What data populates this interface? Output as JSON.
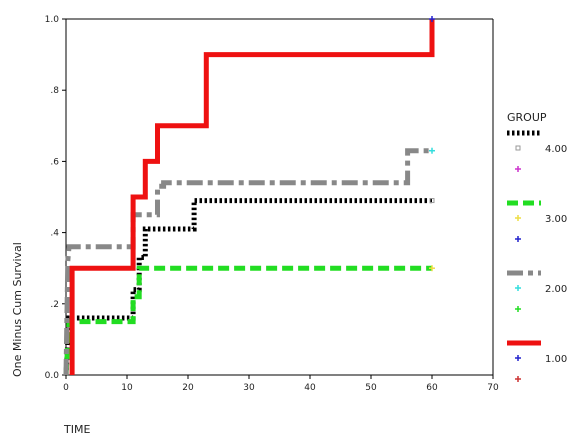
{
  "chart_data": {
    "type": "line",
    "title": "",
    "xlabel": "TIME",
    "ylabel": "One Minus Cum Survival",
    "xlim": [
      0,
      70
    ],
    "ylim": [
      0,
      1
    ],
    "x_ticks": [
      0,
      10,
      20,
      30,
      40,
      50,
      60,
      70
    ],
    "y_ticks": [
      0.0,
      0.2,
      0.4,
      0.6,
      0.8,
      1.0
    ],
    "x_tick_labels": [
      "0",
      "10",
      "20",
      "30",
      "40",
      "50",
      "60",
      "70"
    ],
    "y_tick_labels": [
      "0.0",
      ".2",
      ".4",
      ".6",
      ".8",
      "1.0"
    ],
    "grid": false,
    "legend": {
      "title": "GROUP",
      "placement": "right",
      "entries": [
        "4.00",
        "3.00",
        "2.00",
        "1.00"
      ]
    },
    "series": [
      {
        "name": "4.00",
        "style": "dotted",
        "color": "#000000",
        "censor_color": "#999999",
        "censor_marker": "square",
        "points": [
          [
            0,
            0
          ],
          [
            0.5,
            0.16
          ],
          [
            11,
            0.16
          ],
          [
            11,
            0.24
          ],
          [
            12,
            0.24
          ],
          [
            12,
            0.33
          ],
          [
            13,
            0.33
          ],
          [
            13,
            0.41
          ],
          [
            21,
            0.41
          ],
          [
            21,
            0.49
          ],
          [
            60,
            0.49
          ]
        ]
      },
      {
        "name": "3.00",
        "style": "dashed",
        "color": "#22dd22",
        "censor_color": "#eedd44",
        "censor_marker": "cross",
        "points": [
          [
            0,
            0
          ],
          [
            0.5,
            0.15
          ],
          [
            11,
            0.15
          ],
          [
            11,
            0.22
          ],
          [
            12,
            0.22
          ],
          [
            12,
            0.3
          ],
          [
            60,
            0.3
          ]
        ]
      },
      {
        "name": "2.00",
        "style": "dashdot",
        "color": "#888888",
        "censor_color": "#33dddd",
        "censor_marker": "cross",
        "points": [
          [
            0,
            0
          ],
          [
            0.3,
            0.32
          ],
          [
            0.5,
            0.36
          ],
          [
            11,
            0.36
          ],
          [
            11,
            0.45
          ],
          [
            15,
            0.45
          ],
          [
            15,
            0.53
          ],
          [
            16,
            0.53
          ],
          [
            16,
            0.54
          ],
          [
            56,
            0.54
          ],
          [
            56,
            0.63
          ],
          [
            60,
            0.63
          ]
        ]
      },
      {
        "name": "1.00",
        "style": "solid",
        "color": "#ee1111",
        "censor_color": "#2222cc",
        "censor_marker": "cross",
        "points": [
          [
            1,
            0
          ],
          [
            1,
            0.3
          ],
          [
            11,
            0.3
          ],
          [
            11,
            0.5
          ],
          [
            13,
            0.5
          ],
          [
            13,
            0.6
          ],
          [
            15,
            0.6
          ],
          [
            15,
            0.7
          ],
          [
            23,
            0.7
          ],
          [
            23,
            0.9
          ],
          [
            60,
            0.9
          ],
          [
            60,
            1.0
          ]
        ]
      }
    ],
    "legend_markers": [
      "#cc33cc",
      "#2222cc",
      "#22dd22",
      "#cc3333"
    ]
  }
}
